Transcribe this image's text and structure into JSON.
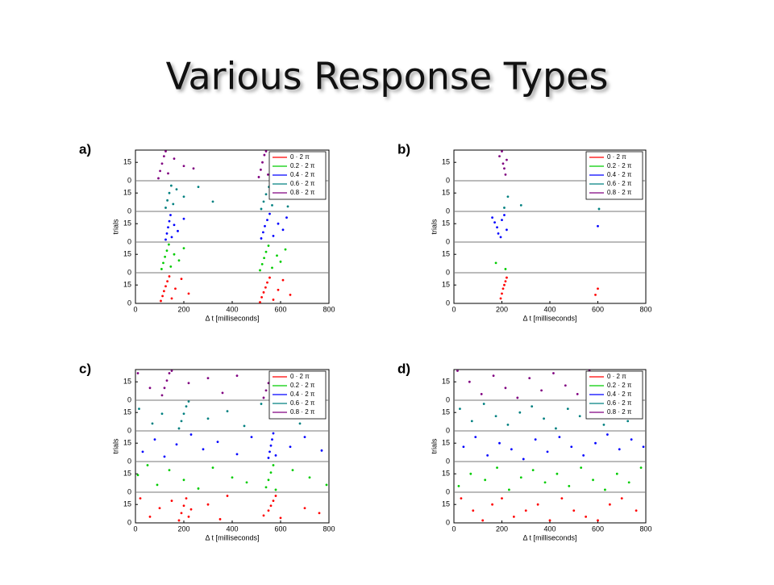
{
  "title": "Various Response Types",
  "chart_data": [
    {
      "type": "scatter",
      "label": "a)",
      "xlabel": "Δ t [milliseconds]",
      "ylabel": "trials",
      "xlim": [
        0,
        800
      ],
      "xticks": [
        0,
        200,
        400,
        600,
        800
      ],
      "ylim": [
        0,
        25
      ],
      "yticks": [
        0,
        15
      ],
      "legend": "upper right",
      "series": [
        {
          "name": "0 · 2 π",
          "color": "#ff0000",
          "x": [
            105,
            112,
            118,
            125,
            132,
            140,
            150,
            165,
            190,
            220,
            515,
            522,
            530,
            538,
            545,
            555,
            570,
            590,
            610,
            640
          ],
          "values": [
            2,
            6,
            10,
            14,
            18,
            22,
            4,
            12,
            20,
            8,
            1,
            5,
            9,
            13,
            17,
            21,
            3,
            11,
            19,
            7
          ]
        },
        {
          "name": "0.2 · 2 π",
          "color": "#00cc00",
          "x": [
            108,
            115,
            122,
            130,
            138,
            146,
            160,
            180,
            200,
            515,
            524,
            532,
            540,
            550,
            565,
            585,
            600,
            620
          ],
          "values": [
            3,
            8,
            13,
            18,
            23,
            5,
            15,
            10,
            20,
            2,
            7,
            12,
            17,
            22,
            4,
            14,
            9,
            19
          ]
        },
        {
          "name": "0.4 · 2 π",
          "color": "#0000ff",
          "x": [
            125,
            130,
            135,
            140,
            145,
            150,
            160,
            175,
            200,
            520,
            528,
            535,
            545,
            555,
            570,
            590,
            610,
            625
          ],
          "values": [
            2,
            7,
            12,
            17,
            22,
            4,
            14,
            9,
            19,
            3,
            8,
            13,
            18,
            23,
            5,
            15,
            10,
            20
          ]
        },
        {
          "name": "0.6 · 2 π",
          "color": "#008080",
          "x": [
            125,
            132,
            140,
            148,
            156,
            170,
            200,
            260,
            320,
            520,
            530,
            540,
            552,
            565,
            580,
            600,
            630
          ],
          "values": [
            3,
            9,
            15,
            21,
            6,
            18,
            12,
            20,
            8,
            2,
            8,
            14,
            20,
            5,
            17,
            11,
            4
          ]
        },
        {
          "name": "0.8 · 2 π",
          "color": "#800080",
          "x": [
            95,
            102,
            110,
            118,
            125,
            135,
            160,
            200,
            240,
            510,
            518,
            525,
            533,
            540,
            548,
            560
          ],
          "values": [
            2,
            8,
            14,
            20,
            24,
            6,
            18,
            12,
            10,
            3,
            9,
            15,
            21,
            24,
            5,
            17
          ]
        }
      ]
    },
    {
      "type": "scatter",
      "label": "b)",
      "xlabel": "Δ t [milliseconds]",
      "ylabel": "trials",
      "xlim": [
        0,
        800
      ],
      "xticks": [
        0,
        200,
        400,
        600,
        800
      ],
      "ylim": [
        0,
        25
      ],
      "yticks": [
        0,
        15
      ],
      "legend": "upper right",
      "series": [
        {
          "name": "0 · 2 π",
          "color": "#ff0000",
          "x": [
            195,
            200,
            205,
            210,
            215,
            220,
            590,
            600
          ],
          "values": [
            4,
            8,
            12,
            15,
            18,
            21,
            7,
            12
          ]
        },
        {
          "name": "0.2 · 2 π",
          "color": "#00cc00",
          "x": [
            175,
            215
          ],
          "values": [
            8,
            3
          ]
        },
        {
          "name": "0.4 · 2 π",
          "color": "#0000ff",
          "x": [
            160,
            170,
            180,
            185,
            195,
            200,
            210,
            220,
            600
          ],
          "values": [
            20,
            16,
            12,
            7,
            4,
            18,
            22,
            10,
            13
          ]
        },
        {
          "name": "0.6 · 2 π",
          "color": "#008080",
          "x": [
            210,
            225,
            280,
            605
          ],
          "values": [
            3,
            12,
            5,
            2
          ]
        },
        {
          "name": "0.8 · 2 π",
          "color": "#800080",
          "x": [
            190,
            200,
            205,
            210,
            215,
            220
          ],
          "values": [
            20,
            24,
            14,
            10,
            5,
            17
          ]
        }
      ]
    },
    {
      "type": "scatter",
      "label": "c)",
      "xlabel": "Δ t [milliseconds]",
      "ylabel": "trials",
      "xlim": [
        0,
        800
      ],
      "xticks": [
        0,
        200,
        400,
        600,
        800
      ],
      "ylim": [
        0,
        25
      ],
      "yticks": [
        0,
        15
      ],
      "legend": "upper right",
      "series": [
        {
          "name": "0 · 2 π",
          "color": "#ff0000",
          "x": [
            20,
            60,
            100,
            150,
            180,
            190,
            200,
            210,
            220,
            230,
            300,
            350,
            380,
            530,
            550,
            560,
            570,
            580,
            600,
            700,
            760
          ],
          "values": [
            20,
            5,
            12,
            18,
            2,
            8,
            14,
            20,
            5,
            11,
            15,
            3,
            22,
            6,
            10,
            14,
            18,
            22,
            4,
            12,
            8
          ]
        },
        {
          "name": "0.2 · 2 π",
          "color": "#00cc00",
          "x": [
            10,
            50,
            90,
            140,
            200,
            260,
            320,
            400,
            460,
            540,
            550,
            560,
            570,
            580,
            650,
            720,
            790
          ],
          "values": [
            14,
            22,
            6,
            18,
            10,
            3,
            20,
            12,
            8,
            4,
            10,
            16,
            22,
            2,
            18,
            12,
            6
          ]
        },
        {
          "name": "0.4 · 2 π",
          "color": "#0000ff",
          "x": [
            30,
            80,
            120,
            170,
            230,
            280,
            340,
            420,
            480,
            550,
            555,
            560,
            565,
            570,
            580,
            640,
            700,
            770
          ],
          "values": [
            8,
            18,
            4,
            14,
            22,
            10,
            16,
            6,
            20,
            3,
            8,
            13,
            18,
            23,
            5,
            12,
            20,
            9
          ]
        },
        {
          "name": "0.6 · 2 π",
          "color": "#008080",
          "x": [
            15,
            70,
            110,
            180,
            190,
            200,
            210,
            220,
            300,
            380,
            450,
            520,
            600,
            680,
            750
          ],
          "values": [
            18,
            6,
            14,
            2,
            8,
            14,
            20,
            24,
            10,
            16,
            4,
            22,
            12,
            6,
            18
          ]
        },
        {
          "name": "0.8 · 2 π",
          "color": "#800080",
          "x": [
            10,
            60,
            110,
            120,
            130,
            140,
            150,
            220,
            300,
            360,
            420,
            530,
            540,
            550,
            560,
            620,
            700
          ],
          "values": [
            22,
            10,
            4,
            10,
            16,
            22,
            24,
            14,
            18,
            6,
            20,
            2,
            8,
            14,
            20,
            10,
            16
          ]
        }
      ]
    },
    {
      "type": "scatter",
      "label": "d)",
      "xlabel": "Δ t [milliseconds]",
      "ylabel": "trials",
      "xlim": [
        0,
        800
      ],
      "xticks": [
        0,
        200,
        400,
        600,
        800
      ],
      "ylim": [
        0,
        25
      ],
      "yticks": [
        0,
        15
      ],
      "legend": "upper right",
      "series": [
        {
          "name": "0 · 2 π",
          "color": "#ff0000",
          "x": [
            30,
            80,
            120,
            160,
            200,
            250,
            300,
            350,
            400,
            450,
            500,
            550,
            600,
            650,
            700,
            760
          ],
          "values": [
            20,
            10,
            2,
            15,
            20,
            5,
            10,
            15,
            2,
            20,
            10,
            5,
            2,
            15,
            20,
            10
          ]
        },
        {
          "name": "0.2 · 2 π",
          "color": "#00cc00",
          "x": [
            20,
            70,
            130,
            180,
            230,
            280,
            330,
            380,
            430,
            480,
            530,
            580,
            630,
            680,
            730,
            780
          ],
          "values": [
            5,
            15,
            10,
            20,
            2,
            12,
            18,
            8,
            15,
            5,
            20,
            10,
            2,
            15,
            8,
            20
          ]
        },
        {
          "name": "0.4 · 2 π",
          "color": "#0000ff",
          "x": [
            40,
            90,
            140,
            190,
            240,
            290,
            340,
            390,
            440,
            490,
            540,
            590,
            640,
            690,
            740,
            790
          ],
          "values": [
            12,
            20,
            5,
            15,
            10,
            2,
            18,
            8,
            20,
            12,
            5,
            15,
            22,
            10,
            18,
            12
          ]
        },
        {
          "name": "0.6 · 2 π",
          "color": "#008080",
          "x": [
            25,
            75,
            125,
            175,
            225,
            275,
            325,
            375,
            425,
            475,
            525,
            575,
            625,
            675,
            725,
            775
          ],
          "values": [
            18,
            8,
            22,
            12,
            5,
            15,
            20,
            10,
            2,
            18,
            12,
            22,
            5,
            15,
            8,
            20
          ]
        },
        {
          "name": "0.8 · 2 π",
          "color": "#800080",
          "x": [
            15,
            65,
            115,
            165,
            215,
            265,
            315,
            365,
            415,
            465,
            515,
            565,
            615,
            665,
            715,
            765
          ],
          "values": [
            24,
            15,
            5,
            20,
            10,
            2,
            18,
            8,
            22,
            12,
            5,
            24,
            15,
            8,
            20,
            12
          ]
        }
      ]
    }
  ]
}
